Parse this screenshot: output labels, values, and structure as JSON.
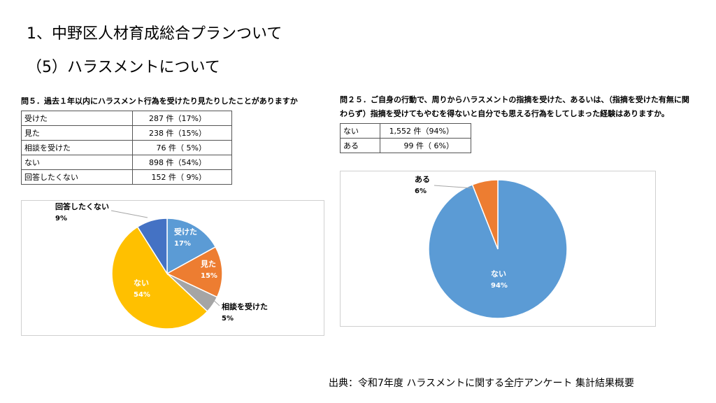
{
  "slide": {
    "title": "1、中野区人材育成総合プランついて",
    "subtitle": "（5）ハラスメントについて",
    "source": "出典：令和7年度 ハラスメントに関する全庁アンケート 集計結果概要"
  },
  "q5": {
    "question": "問５．過去１年以内にハラスメント行為を受けたり見たりしたことがありますか",
    "rows": [
      {
        "label": "受けた",
        "value": "287 件（17%）"
      },
      {
        "label": "見た",
        "value": "238 件（15%）"
      },
      {
        "label": "相談を受けた",
        "value": "76 件（ 5%）"
      },
      {
        "label": "ない",
        "value": "898 件（54%）"
      },
      {
        "label": "回答したくない",
        "value": "152 件（ 9%）"
      }
    ]
  },
  "q25": {
    "question_line1": "問２５．ご自身の行動で、周りからハラスメントの指摘を受けた、あるいは、（指摘を受けた有無に関",
    "question_line2": "わらず）指摘を受けてもやむを得ないと自分でも思える行為をしてしまった経験はありますか。",
    "rows": [
      {
        "label": "ない",
        "value": "1,552 件（94%）"
      },
      {
        "label": "ある",
        "value": "99 件（ 6%）"
      }
    ]
  },
  "chart_data": [
    {
      "type": "pie",
      "title": "",
      "categories": [
        "受けた",
        "見た",
        "相談を受けた",
        "ない",
        "回答したくない"
      ],
      "values": [
        17,
        15,
        5,
        54,
        9
      ],
      "labels": [
        "17%",
        "15%",
        "5%",
        "54%",
        "9%"
      ],
      "colors": [
        "#5B9BD5",
        "#ED7D31",
        "#A5A5A5",
        "#FFC000",
        "#4472C4"
      ]
    },
    {
      "type": "pie",
      "title": "",
      "categories": [
        "ない",
        "ある"
      ],
      "values": [
        94,
        6
      ],
      "labels": [
        "94%",
        "6%"
      ],
      "colors": [
        "#5B9BD5",
        "#ED7D31"
      ]
    }
  ]
}
